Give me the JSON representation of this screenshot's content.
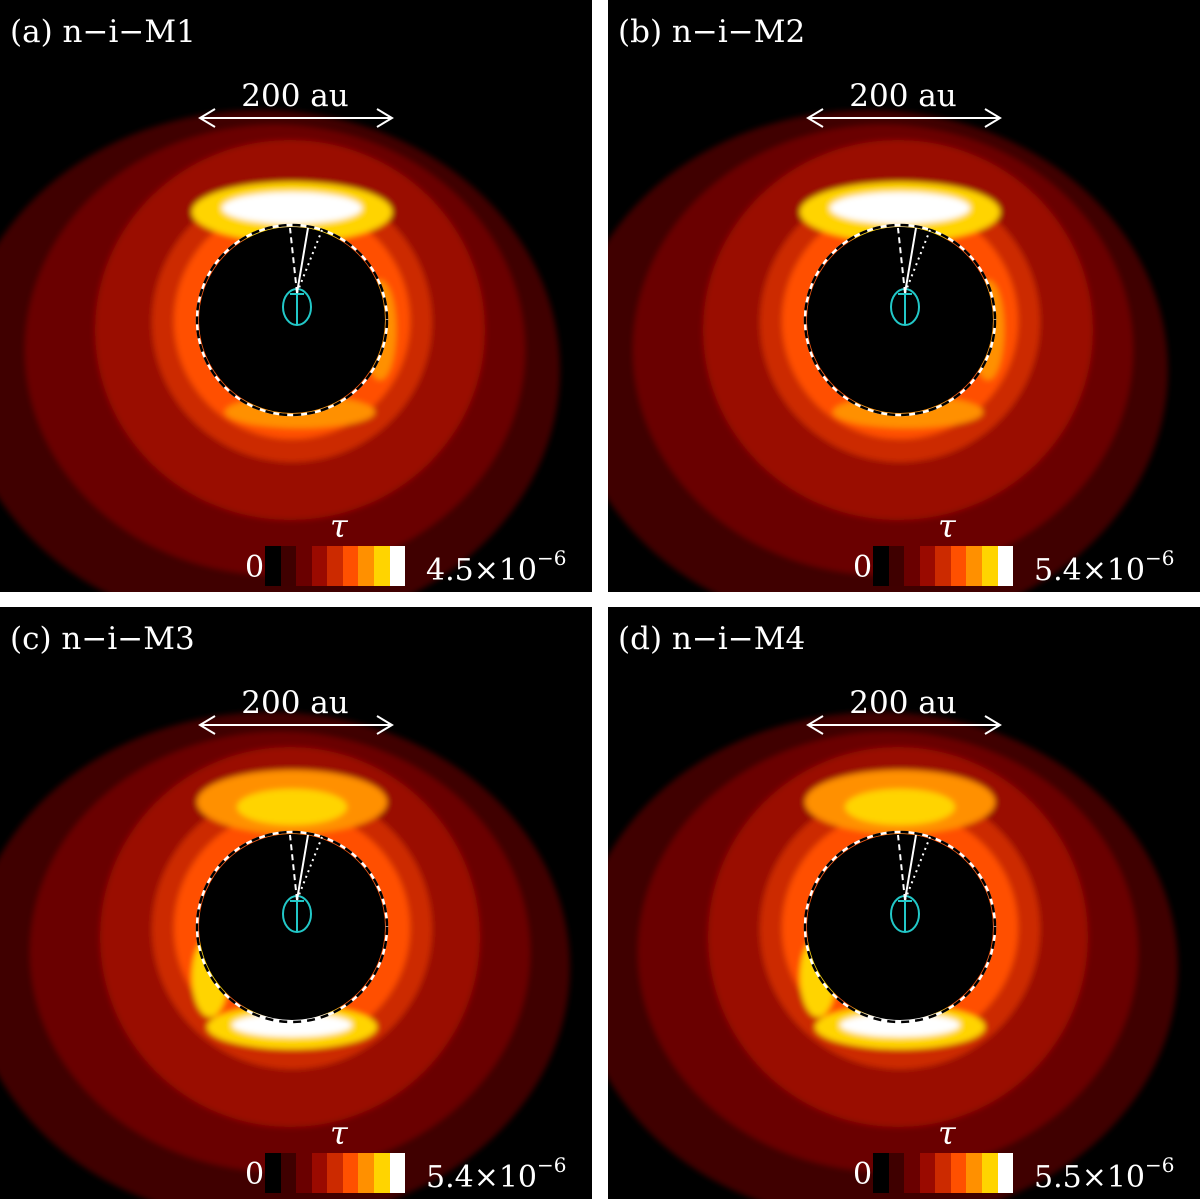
{
  "scale_bar_label": "200 au",
  "colorbar_label": "τ",
  "colorbar_min": "0",
  "colormap": [
    "#000000",
    "#3f0000",
    "#6a0000",
    "#9a0a00",
    "#cc2a00",
    "#ff5000",
    "#ff9000",
    "#ffd400",
    "#ffffff"
  ],
  "panels": [
    {
      "title": "(a) n−i−M1",
      "max_mantissa": "4.5×10",
      "max_exponent": "−6",
      "bright_side": "top"
    },
    {
      "title": "(b) n−i−M2",
      "max_mantissa": "5.4×10",
      "max_exponent": "−6",
      "bright_side": "top"
    },
    {
      "title": "(c) n−i−M3",
      "max_mantissa": "5.4×10",
      "max_exponent": "−6",
      "bright_side": "bottom"
    },
    {
      "title": "(d) n−i−M4",
      "max_mantissa": "5.5×10",
      "max_exponent": "−6",
      "bright_side": "bottom"
    }
  ]
}
